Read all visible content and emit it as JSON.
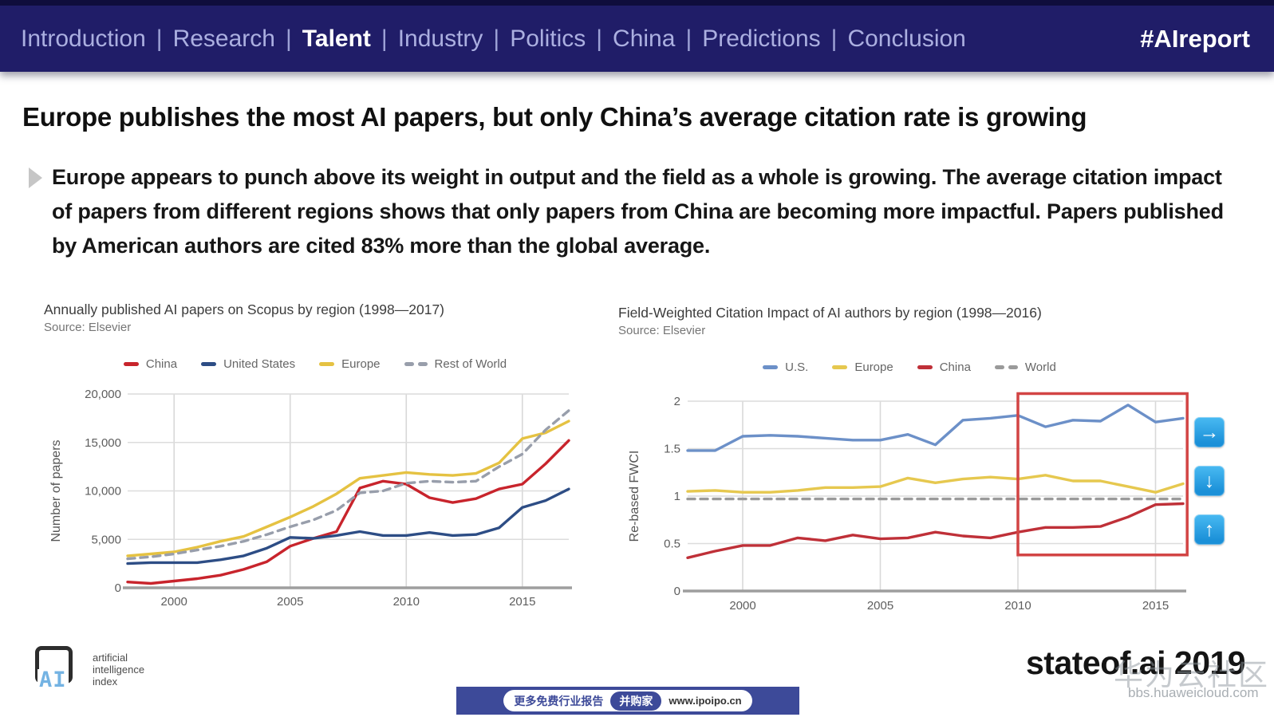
{
  "nav": {
    "items": [
      {
        "label": "Introduction",
        "active": false
      },
      {
        "label": "Research",
        "active": false
      },
      {
        "label": "Talent",
        "active": true
      },
      {
        "label": "Industry",
        "active": false
      },
      {
        "label": "Politics",
        "active": false
      },
      {
        "label": "China",
        "active": false
      },
      {
        "label": "Predictions",
        "active": false
      },
      {
        "label": "Conclusion",
        "active": false
      }
    ],
    "separator": "|",
    "hashtag": "#AIreport"
  },
  "title": "Europe publishes the most AI papers, but only China’s average citation rate is growing",
  "lede": "Europe appears to punch above its weight in output and the field as a whole is growing. The average citation impact of papers from different regions shows that only papers from China are becoming more impactful. Papers published by American authors are cited 83% more than the global average.",
  "chart_data": [
    {
      "type": "line",
      "title": "Annually published AI papers on Scopus by region (1998—2017)",
      "source": "Source: Elsevier",
      "ylabel": "Number of papers",
      "xlim": [
        1998,
        2017
      ],
      "ylim": [
        0,
        20000
      ],
      "grid": true,
      "legend_position": "top",
      "x": [
        1998,
        1999,
        2000,
        2001,
        2002,
        2003,
        2004,
        2005,
        2006,
        2007,
        2008,
        2009,
        2010,
        2011,
        2012,
        2013,
        2014,
        2015,
        2016,
        2017
      ],
      "x_ticks": [
        2000,
        2005,
        2010,
        2015
      ],
      "y_ticks": [
        0,
        5000,
        10000,
        15000,
        20000
      ],
      "y_tick_labels": [
        "0",
        "5,000",
        "10,000",
        "15,000",
        "20,000"
      ],
      "series": [
        {
          "name": "China",
          "color": "#c8242c",
          "dash": false,
          "values": [
            600,
            450,
            700,
            950,
            1300,
            1900,
            2700,
            4300,
            5100,
            5800,
            10300,
            11000,
            10700,
            9300,
            8800,
            9200,
            10200,
            10700,
            12800,
            15200
          ]
        },
        {
          "name": "United States",
          "color": "#2d4d85",
          "dash": false,
          "values": [
            2500,
            2600,
            2600,
            2600,
            2900,
            3300,
            4100,
            5200,
            5100,
            5400,
            5800,
            5400,
            5400,
            5700,
            5400,
            5500,
            6200,
            8300,
            9000,
            10200
          ]
        },
        {
          "name": "Europe",
          "color": "#e5c242",
          "dash": false,
          "values": [
            3300,
            3500,
            3700,
            4200,
            4800,
            5300,
            6300,
            7300,
            8400,
            9700,
            11300,
            11600,
            11900,
            11700,
            11600,
            11800,
            12900,
            15400,
            16000,
            17200
          ]
        },
        {
          "name": "Rest of World",
          "color": "#989eab",
          "dash": true,
          "values": [
            3000,
            3200,
            3500,
            3900,
            4300,
            4800,
            5500,
            6300,
            7000,
            8000,
            9800,
            10000,
            10800,
            11000,
            10900,
            11000,
            12500,
            13800,
            16300,
            18300
          ]
        }
      ]
    },
    {
      "type": "line",
      "title": "Field-Weighted Citation Impact of AI authors by region (1998—2016)",
      "source": "Source: Elsevier",
      "ylabel": "Re-based FWCI",
      "xlim": [
        1998,
        2016
      ],
      "ylim": [
        0,
        2
      ],
      "grid": true,
      "legend_position": "top",
      "x": [
        1998,
        1999,
        2000,
        2001,
        2002,
        2003,
        2004,
        2005,
        2006,
        2007,
        2008,
        2009,
        2010,
        2011,
        2012,
        2013,
        2014,
        2015,
        2016
      ],
      "x_ticks": [
        2000,
        2005,
        2010,
        2015
      ],
      "y_ticks": [
        0,
        0.5,
        1,
        1.5,
        2
      ],
      "y_tick_labels": [
        "0",
        "0.5",
        "1",
        "1.5",
        "2"
      ],
      "series": [
        {
          "name": "U.S.",
          "color": "#6c90c8",
          "dash": false,
          "values": [
            1.48,
            1.48,
            1.63,
            1.64,
            1.63,
            1.61,
            1.59,
            1.59,
            1.65,
            1.54,
            1.8,
            1.82,
            1.85,
            1.73,
            1.8,
            1.79,
            1.96,
            1.78,
            1.82
          ]
        },
        {
          "name": "Europe",
          "color": "#e6c84f",
          "dash": false,
          "values": [
            1.05,
            1.06,
            1.04,
            1.04,
            1.06,
            1.09,
            1.09,
            1.1,
            1.19,
            1.14,
            1.18,
            1.2,
            1.18,
            1.22,
            1.16,
            1.16,
            1.1,
            1.04,
            1.13
          ]
        },
        {
          "name": "China",
          "color": "#bf3038",
          "dash": false,
          "values": [
            0.35,
            0.42,
            0.48,
            0.48,
            0.56,
            0.53,
            0.59,
            0.55,
            0.56,
            0.62,
            0.58,
            0.56,
            0.62,
            0.67,
            0.67,
            0.68,
            0.78,
            0.91,
            0.92
          ]
        },
        {
          "name": "World",
          "color": "#9a9a9a",
          "dash": true,
          "values": [
            0.97,
            0.97,
            0.97,
            0.97,
            0.97,
            0.97,
            0.97,
            0.97,
            0.97,
            0.97,
            0.97,
            0.97,
            0.97,
            0.97,
            0.97,
            0.97,
            0.97,
            0.97,
            0.97
          ]
        }
      ],
      "highlight": {
        "x0": 2010,
        "x1": 2016.15,
        "y0": 0.38,
        "y1": 2.08,
        "color": "#d24444"
      }
    }
  ],
  "trend_buttons": [
    {
      "name": "flat-arrow",
      "glyph": "→"
    },
    {
      "name": "down-arrow",
      "glyph": "↓"
    },
    {
      "name": "up-arrow",
      "glyph": "↑"
    }
  ],
  "footer": {
    "logo": {
      "monogram": "AI",
      "line1": "artificial",
      "line2": "intelligence",
      "line3": "index"
    },
    "brand": "stateof.ai 2019",
    "watermark": {
      "line1": "华为云社区",
      "line2": "bbs.huaweicloud.com"
    },
    "banner": {
      "prefix": "更多免费行业报告",
      "badge": "并购家",
      "url": "www.ipoipo.cn"
    }
  }
}
